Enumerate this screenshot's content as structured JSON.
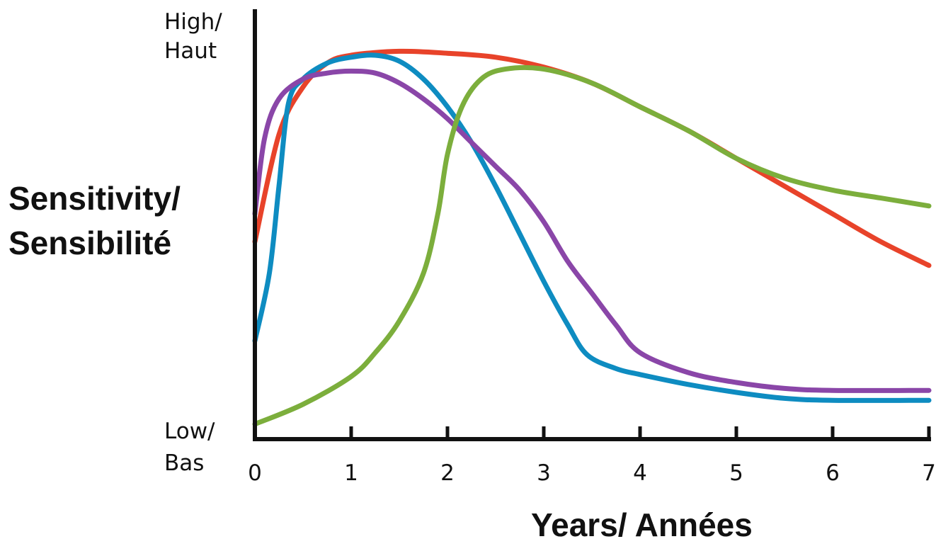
{
  "chart_data": {
    "type": "line",
    "ylabel_lines": [
      "Sensitivity/",
      "Sensibilité"
    ],
    "xlabel": "Years/ Années",
    "y_high_lines": [
      "High/",
      "Haut"
    ],
    "y_low_lines": [
      "Low/",
      "Bas"
    ],
    "xlim": [
      0,
      7
    ],
    "ylim": [
      0,
      100
    ],
    "x_ticks": [
      "0",
      "1",
      "2",
      "3",
      "4",
      "5",
      "6",
      "7"
    ],
    "grid": false,
    "series": [
      {
        "color": "#e8432a",
        "points": [
          [
            0,
            48
          ],
          [
            0.25,
            75
          ],
          [
            0.5,
            87
          ],
          [
            0.75,
            93
          ],
          [
            1,
            95
          ],
          [
            1.5,
            96
          ],
          [
            2,
            95.5
          ],
          [
            2.5,
            94.5
          ],
          [
            3,
            92
          ],
          [
            3.5,
            88
          ],
          [
            4,
            82
          ],
          [
            4.5,
            76
          ],
          [
            5,
            69
          ],
          [
            5.5,
            62
          ],
          [
            6,
            55
          ],
          [
            6.5,
            48
          ],
          [
            7,
            42
          ]
        ]
      },
      {
        "color": "#0e8cc1",
        "points": [
          [
            0,
            23
          ],
          [
            0.15,
            40
          ],
          [
            0.25,
            62
          ],
          [
            0.35,
            83
          ],
          [
            0.5,
            89
          ],
          [
            0.75,
            93
          ],
          [
            1,
            94.5
          ],
          [
            1.25,
            95
          ],
          [
            1.5,
            93.5
          ],
          [
            1.75,
            89
          ],
          [
            2,
            82
          ],
          [
            2.25,
            73
          ],
          [
            2.5,
            62
          ],
          [
            2.75,
            50
          ],
          [
            3,
            38
          ],
          [
            3.25,
            27
          ],
          [
            3.45,
            19.5
          ],
          [
            3.75,
            16
          ],
          [
            4,
            14.5
          ],
          [
            4.5,
            12
          ],
          [
            5,
            10
          ],
          [
            5.5,
            8.5
          ],
          [
            6,
            8
          ],
          [
            7,
            8
          ]
        ]
      },
      {
        "color": "#8a46a8",
        "points": [
          [
            0,
            55
          ],
          [
            0.1,
            74
          ],
          [
            0.25,
            84
          ],
          [
            0.5,
            89
          ],
          [
            0.75,
            90.5
          ],
          [
            1,
            91
          ],
          [
            1.25,
            90.5
          ],
          [
            1.5,
            88
          ],
          [
            1.75,
            84
          ],
          [
            2,
            79
          ],
          [
            2.25,
            73
          ],
          [
            2.5,
            67
          ],
          [
            2.75,
            61
          ],
          [
            3,
            53
          ],
          [
            3.25,
            43
          ],
          [
            3.5,
            35
          ],
          [
            3.75,
            27
          ],
          [
            4,
            20
          ],
          [
            4.5,
            15
          ],
          [
            5,
            12.5
          ],
          [
            5.5,
            11
          ],
          [
            6,
            10.5
          ],
          [
            7,
            10.5
          ]
        ]
      },
      {
        "color": "#7cae3c",
        "points": [
          [
            0,
            2
          ],
          [
            0.5,
            7
          ],
          [
            1,
            14
          ],
          [
            1.25,
            20
          ],
          [
            1.5,
            28
          ],
          [
            1.75,
            40
          ],
          [
            1.9,
            55
          ],
          [
            2,
            70
          ],
          [
            2.15,
            82
          ],
          [
            2.35,
            89
          ],
          [
            2.6,
            91.5
          ],
          [
            3,
            91.5
          ],
          [
            3.5,
            88
          ],
          [
            4,
            82
          ],
          [
            4.5,
            76
          ],
          [
            5,
            69
          ],
          [
            5.5,
            64
          ],
          [
            6,
            61
          ],
          [
            6.5,
            59
          ],
          [
            7,
            57
          ]
        ]
      }
    ]
  }
}
